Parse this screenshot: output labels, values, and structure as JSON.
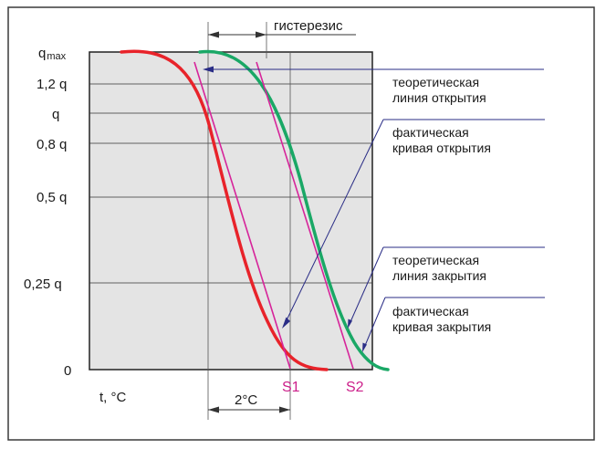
{
  "y_ticks": [
    {
      "label_main": "q",
      "label_sub": "max"
    },
    {
      "label_main": "1,2 q"
    },
    {
      "label_main": "q"
    },
    {
      "label_main": "0,8 q"
    },
    {
      "label_main": "0,5 q"
    },
    {
      "label_main": "0,25 q"
    },
    {
      "label_main": "0"
    }
  ],
  "x_axis_label": "t, °C",
  "hysteresis_label": "гистерезис",
  "delta_label": "2°C",
  "points": {
    "s1": "S1",
    "s2": "S2"
  },
  "annotations": {
    "theoretical_opening": [
      "теоретическая",
      "линия открытия"
    ],
    "actual_opening": [
      "фактическая",
      "кривая открытия"
    ],
    "theoretical_closing": [
      "теоретическая",
      "линия закрытия"
    ],
    "actual_closing": [
      "фактическая",
      "кривая закрытия"
    ]
  },
  "colors": {
    "frame": "#3a3a3a",
    "plot_fill": "#e4e4e4",
    "closing_curve": "#e8232a",
    "opening_curve": "#1aa866",
    "theoretical_line": "#d6249a",
    "pointer": "#2a2d86",
    "grid": "#333333"
  }
}
